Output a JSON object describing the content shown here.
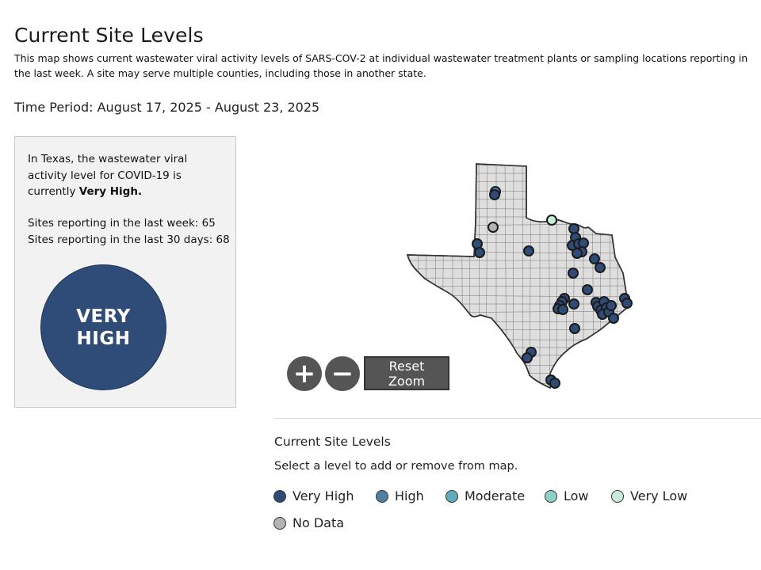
{
  "header": {
    "title": "Current Site Levels",
    "description": "This map shows current wastewater viral activity levels of SARS-COV-2 at individual wastewater treatment plants or sampling locations reporting in the last week. A site may serve multiple counties, including those in another state.",
    "time_period": "Time Period: August 17, 2025 - August 23, 2025"
  },
  "summary": {
    "text_before": "In Texas, the wastewater viral activity level for COVID-19 is currently ",
    "level_strong": "Very High.",
    "sites_last_week": "Sites reporting in the last week: 65",
    "sites_last_30": "Sites reporting in the last 30 days: 68",
    "level_badge": "VERY HIGH",
    "badge_color": "#2f4b77"
  },
  "map": {
    "state": "Texas",
    "zoom_in_icon": "plus-icon",
    "zoom_out_icon": "minus-icon",
    "reset_label": "Reset Zoom",
    "sites": [
      {
        "level": "High",
        "x": 285,
        "y": 62
      },
      {
        "level": "Very High",
        "x": 284,
        "y": 66
      },
      {
        "level": "No Data",
        "x": 282,
        "y": 107
      },
      {
        "level": "Very Low",
        "x": 356,
        "y": 98
      },
      {
        "level": "Very High",
        "x": 262,
        "y": 128
      },
      {
        "level": "Very High",
        "x": 265,
        "y": 139
      },
      {
        "level": "Very High",
        "x": 327,
        "y": 137
      },
      {
        "level": "Very High",
        "x": 384,
        "y": 109
      },
      {
        "level": "Very High",
        "x": 386,
        "y": 120
      },
      {
        "level": "Very High",
        "x": 382,
        "y": 130
      },
      {
        "level": "Very High",
        "x": 390,
        "y": 128
      },
      {
        "level": "Very High",
        "x": 396,
        "y": 127
      },
      {
        "level": "Very High",
        "x": 394,
        "y": 138
      },
      {
        "level": "Very High",
        "x": 388,
        "y": 140
      },
      {
        "level": "Very High",
        "x": 410,
        "y": 147
      },
      {
        "level": "Very High",
        "x": 417,
        "y": 158
      },
      {
        "level": "Very High",
        "x": 383,
        "y": 165
      },
      {
        "level": "Very High",
        "x": 401,
        "y": 186
      },
      {
        "level": "Very High",
        "x": 384,
        "y": 204
      },
      {
        "level": "Very High",
        "x": 372,
        "y": 197
      },
      {
        "level": "Very High",
        "x": 369,
        "y": 201
      },
      {
        "level": "Very High",
        "x": 366,
        "y": 206
      },
      {
        "level": "Very High",
        "x": 364,
        "y": 210
      },
      {
        "level": "Very High",
        "x": 370,
        "y": 211
      },
      {
        "level": "Very High",
        "x": 412,
        "y": 202
      },
      {
        "level": "Very High",
        "x": 414,
        "y": 207
      },
      {
        "level": "Very High",
        "x": 418,
        "y": 212
      },
      {
        "level": "Very High",
        "x": 422,
        "y": 201
      },
      {
        "level": "Very High",
        "x": 425,
        "y": 209
      },
      {
        "level": "Very High",
        "x": 420,
        "y": 217
      },
      {
        "level": "Very High",
        "x": 428,
        "y": 214
      },
      {
        "level": "Very High",
        "x": 431,
        "y": 206
      },
      {
        "level": "Very High",
        "x": 434,
        "y": 222
      },
      {
        "level": "Very High",
        "x": 448,
        "y": 197
      },
      {
        "level": "Very High",
        "x": 451,
        "y": 203
      },
      {
        "level": "Very High",
        "x": 385,
        "y": 235
      },
      {
        "level": "Very High",
        "x": 330,
        "y": 265
      },
      {
        "level": "Very High",
        "x": 325,
        "y": 272
      },
      {
        "level": "Very High",
        "x": 355,
        "y": 300
      },
      {
        "level": "Very High",
        "x": 360,
        "y": 304
      }
    ]
  },
  "legend": {
    "title": "Current Site Levels",
    "instructions": "Select a level to add or remove from map.",
    "items": [
      {
        "label": "Very High",
        "color": "#2f4b77"
      },
      {
        "label": "High",
        "color": "#4f7fa3"
      },
      {
        "label": "Moderate",
        "color": "#62aab9"
      },
      {
        "label": "Low",
        "color": "#8fd0c6"
      },
      {
        "label": "Very Low",
        "color": "#c9ecd8"
      },
      {
        "label": "No Data",
        "color": "#b3b3b3"
      }
    ]
  }
}
